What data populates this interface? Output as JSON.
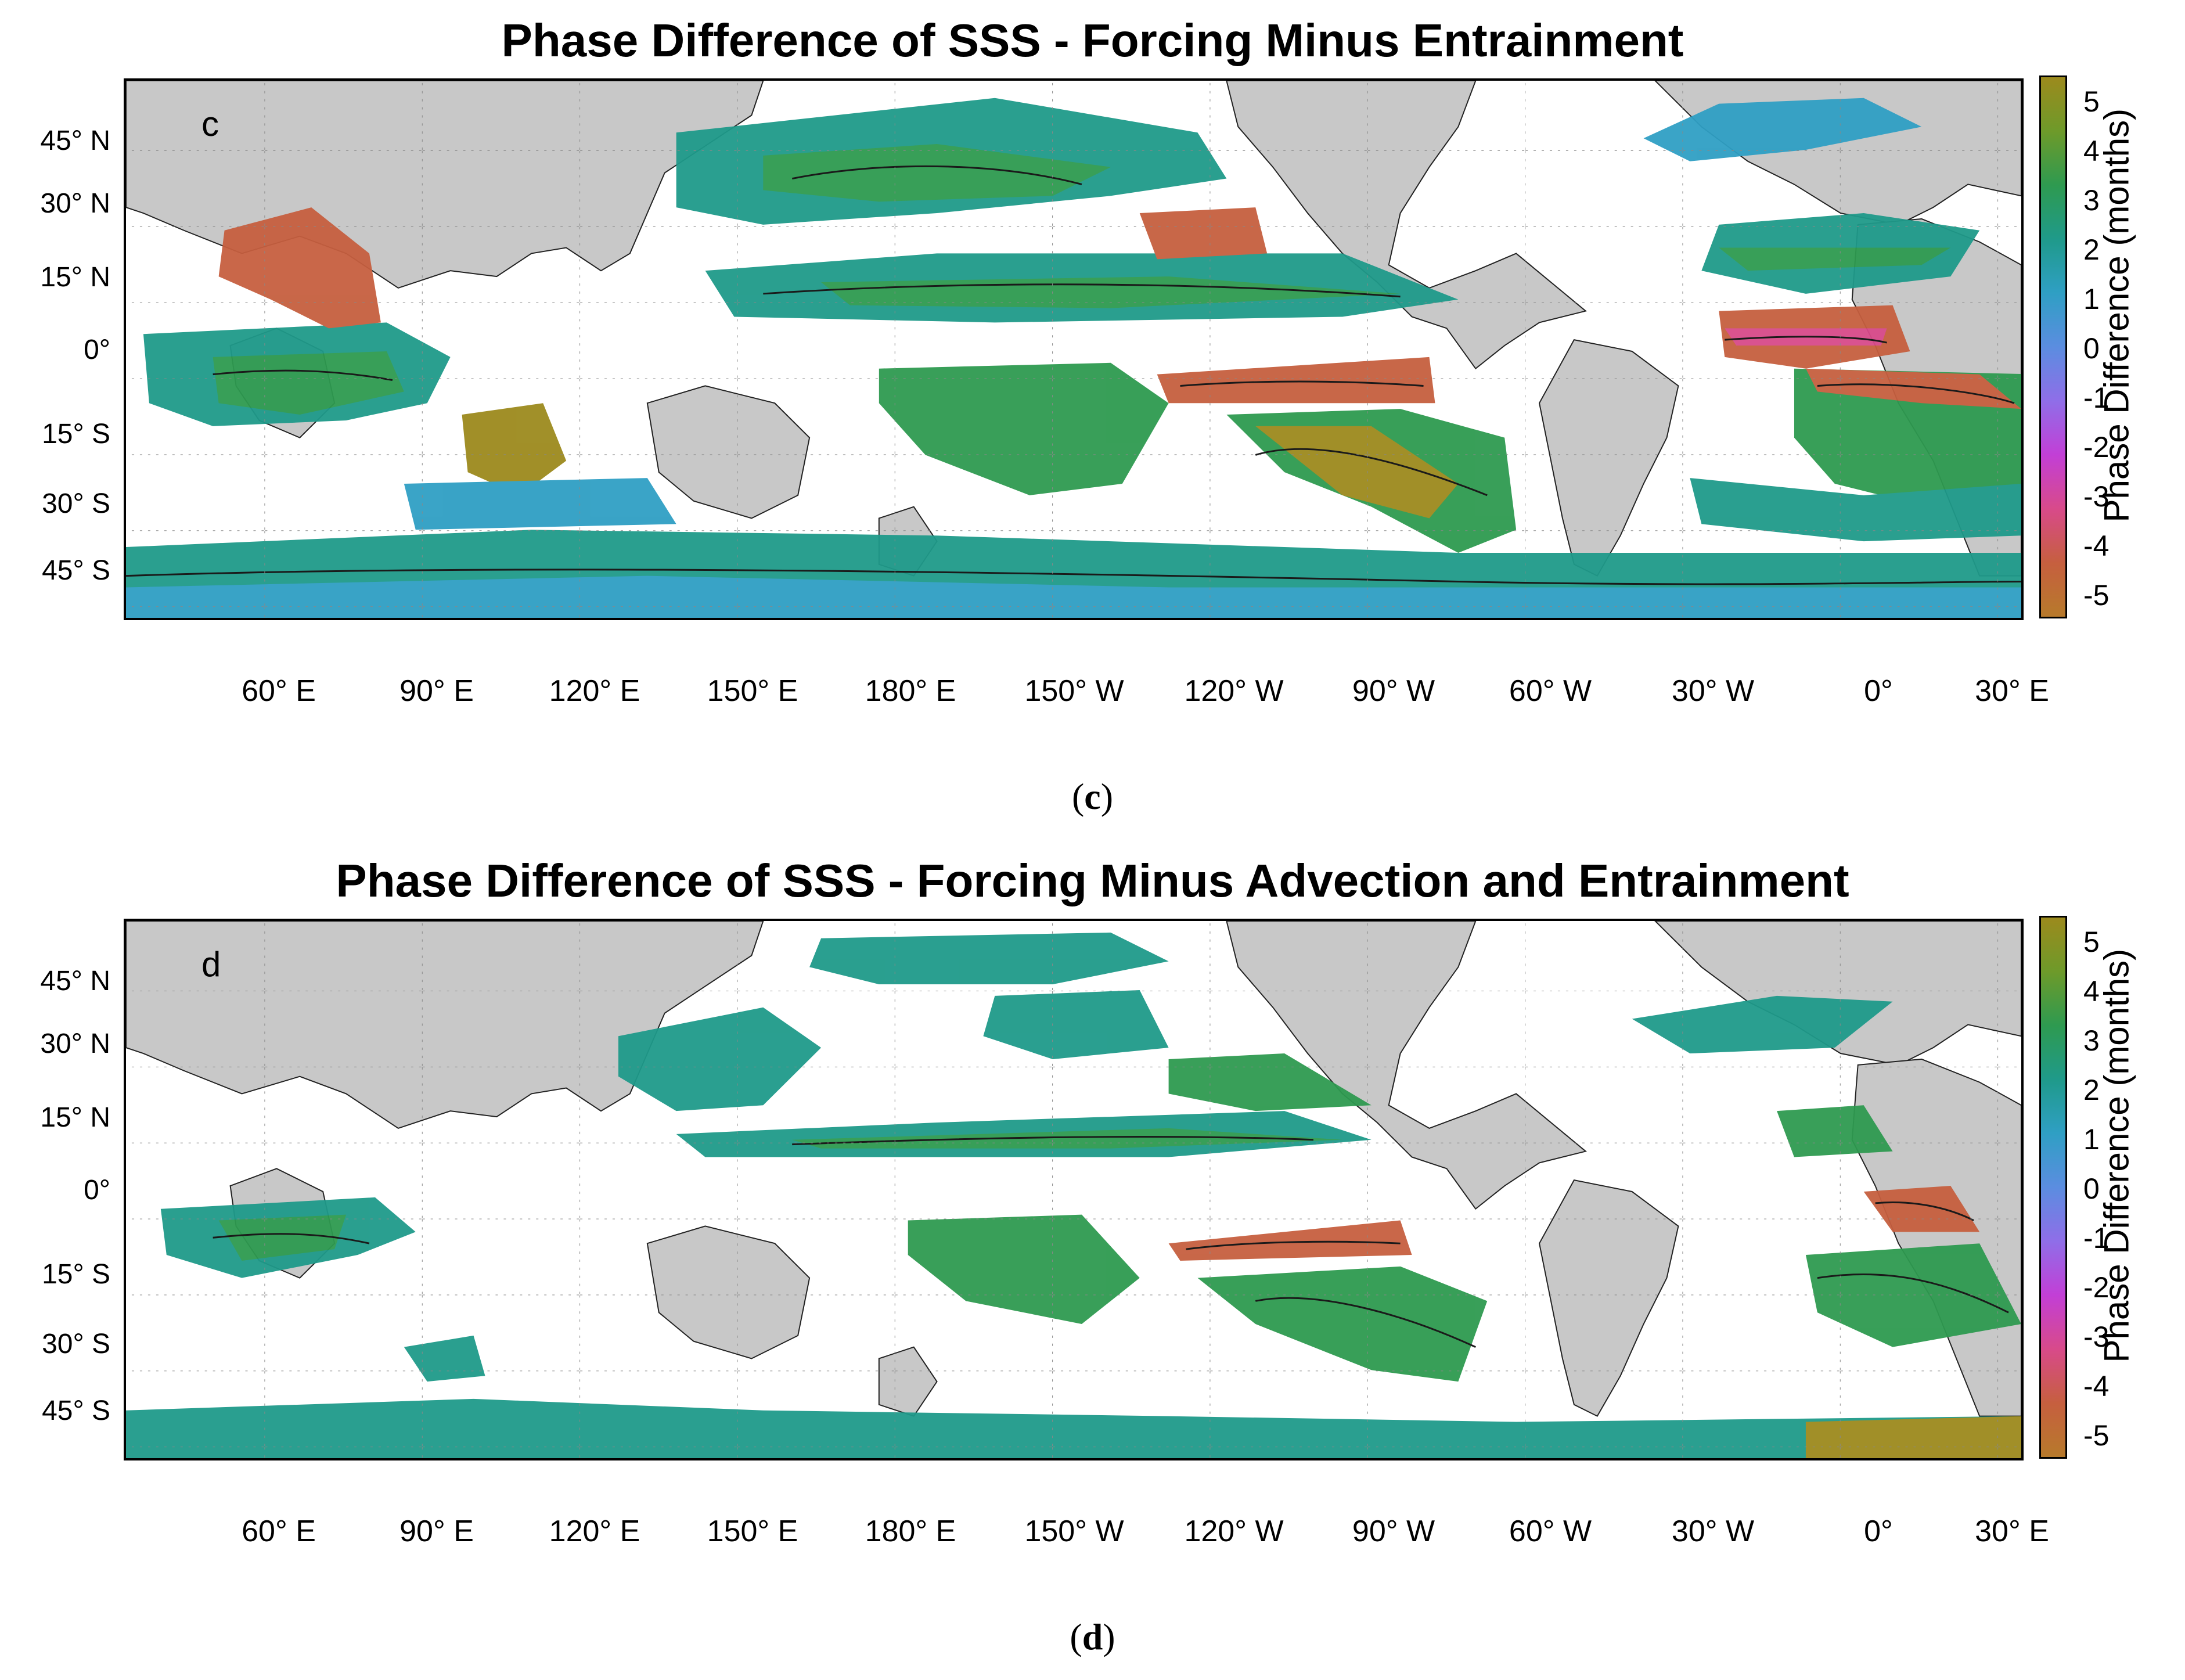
{
  "panels": [
    {
      "id": "c",
      "title": "Phase Difference of SSS - Forcing Minus Entrainment",
      "panel_letter": "c",
      "caption_letter": "c"
    },
    {
      "id": "d",
      "title": "Phase Difference of SSS - Forcing Minus Advection and Entrainment",
      "panel_letter": "d",
      "caption_letter": "d"
    }
  ],
  "lat_labels": [
    "45° N",
    "30° N",
    "15° N",
    "0°",
    "15° S",
    "30° S",
    "45° S"
  ],
  "lon_labels": [
    "60° E",
    "90° E",
    "120° E",
    "150° E",
    "180° E",
    "150° W",
    "120° W",
    "90° W",
    "60° W",
    "30° W",
    "0°",
    "30° E"
  ],
  "colorbar": {
    "label": "Phase Difference (months)",
    "ticks": [
      "5",
      "4",
      "3",
      "2",
      "1",
      "0",
      "-1",
      "-2",
      "-3",
      "-4",
      "-5"
    ],
    "range": [
      -5.5,
      5.5
    ],
    "colors": [
      "#b77a2b",
      "#c65f3f",
      "#d84a8a",
      "#c23fd6",
      "#8f6ee8",
      "#5b8de0",
      "#2f9fc4",
      "#1f9a8a",
      "#2e9a50",
      "#6e9a2a",
      "#9c8a1d"
    ]
  },
  "colors": {
    "land": "#c8c8c8",
    "ocean_nodata": "#ffffff",
    "contour": "#1a1a1a"
  }
}
